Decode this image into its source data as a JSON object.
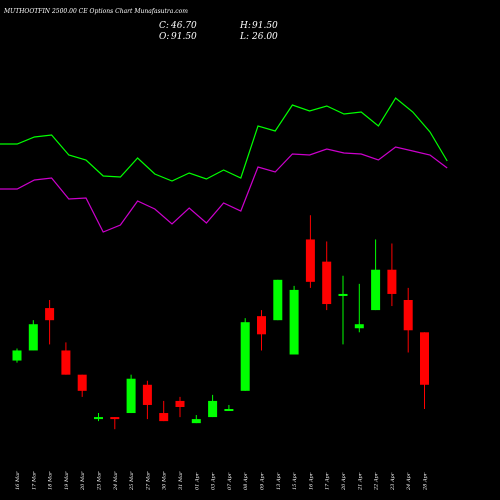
{
  "chart_data": {
    "type": "candlestick",
    "title": "MUTHOOTFIN 2500.00 CE Options Chart Munafasutra.com",
    "ohlc": {
      "c_label": "C:",
      "c_value": "46.70",
      "h_label": "H:",
      "h_value": "91.50",
      "o_label": "O:",
      "o_value": "91.50",
      "l_label": "L:",
      "l_value": "26.00"
    },
    "candles": [
      {
        "date": "16 Mar",
        "open": 47.0,
        "close": 49.5,
        "high": 50.0,
        "low": 46.5,
        "color": "green"
      },
      {
        "date": "17 Mar",
        "open": 49.5,
        "close": 56.0,
        "high": 57.0,
        "low": 49.5,
        "color": "green"
      },
      {
        "date": "18 Mar",
        "open": 60.0,
        "close": 57.0,
        "high": 62.0,
        "low": 51.0,
        "color": "red"
      },
      {
        "date": "19 Mar",
        "open": 49.5,
        "close": 43.5,
        "high": 51.5,
        "low": 43.5,
        "color": "red"
      },
      {
        "date": "20 Mar",
        "open": 43.5,
        "close": 39.5,
        "high": 43.5,
        "low": 38.0,
        "color": "red"
      },
      {
        "date": "23 Mar",
        "open": 33.0,
        "close": 32.5,
        "high": 34.0,
        "low": 32.0,
        "color": "green"
      },
      {
        "date": "24 Mar",
        "open": 33.0,
        "close": 32.5,
        "high": 33.0,
        "low": 30.0,
        "color": "red"
      },
      {
        "date": "25 Mar",
        "open": 34.0,
        "close": 42.5,
        "high": 43.5,
        "low": 34.0,
        "color": "green"
      },
      {
        "date": "27 Mar",
        "open": 41.0,
        "close": 36.0,
        "high": 42.0,
        "low": 32.5,
        "color": "red"
      },
      {
        "date": "30 Mar",
        "open": 34.0,
        "close": 32.0,
        "high": 37.0,
        "low": 32.0,
        "color": "red"
      },
      {
        "date": "31 Mar",
        "open": 37.0,
        "close": 35.5,
        "high": 38.0,
        "low": 33.0,
        "color": "red"
      },
      {
        "date": "01 Apr",
        "open": 31.5,
        "close": 32.5,
        "high": 33.5,
        "low": 31.5,
        "color": "green"
      },
      {
        "date": "03 Apr",
        "open": 33.0,
        "close": 37.0,
        "high": 38.5,
        "low": 33.0,
        "color": "green"
      },
      {
        "date": "07 Apr",
        "open": 34.5,
        "close": 35.0,
        "high": 36.0,
        "low": 34.5,
        "color": "green"
      },
      {
        "date": "08 Apr",
        "open": 39.5,
        "close": 56.5,
        "high": 57.5,
        "low": 39.5,
        "color": "green"
      },
      {
        "date": "09 Apr",
        "open": 58.0,
        "close": 53.5,
        "high": 59.5,
        "low": 49.5,
        "color": "red"
      },
      {
        "date": "13 Apr",
        "open": 57.0,
        "close": 67.0,
        "high": 67.0,
        "low": 57.0,
        "color": "green"
      },
      {
        "date": "15 Apr",
        "open": 48.5,
        "close": 64.5,
        "high": 65.5,
        "low": 48.5,
        "color": "green"
      },
      {
        "date": "16 Apr",
        "open": 77.0,
        "close": 66.5,
        "high": 83.0,
        "low": 65.0,
        "color": "red"
      },
      {
        "date": "17 Apr",
        "open": 71.5,
        "close": 61.0,
        "high": 76.5,
        "low": 59.5,
        "color": "red"
      },
      {
        "date": "20 Apr",
        "open": 63.0,
        "close": 63.5,
        "high": 68.0,
        "low": 51.0,
        "color": "green"
      },
      {
        "date": "21 Apr",
        "open": 55.0,
        "close": 56.0,
        "high": 66.0,
        "low": 54.0,
        "color": "green"
      },
      {
        "date": "22 Apr",
        "open": 59.5,
        "close": 69.5,
        "high": 77.0,
        "low": 59.5,
        "color": "green"
      },
      {
        "date": "23 Apr",
        "open": 69.5,
        "close": 63.5,
        "high": 76.0,
        "low": 60.5,
        "color": "red"
      },
      {
        "date": "24 Apr",
        "open": 62.0,
        "close": 54.5,
        "high": 65.0,
        "low": 49.0,
        "color": "red"
      },
      {
        "date": "28 Apr",
        "open": 54.0,
        "close": 41.0,
        "high": 54.0,
        "low": 35.0,
        "color": "red"
      }
    ],
    "upper_line": [
      144,
      144,
      137,
      135,
      155,
      160,
      176,
      177,
      158,
      174,
      181,
      173,
      179,
      170,
      178,
      126,
      131,
      105,
      111,
      106,
      114,
      112,
      126,
      98,
      112,
      132,
      161
    ],
    "lower_line": [
      189,
      189,
      180,
      178,
      199,
      198,
      232,
      225,
      201,
      209,
      224,
      208,
      223,
      203,
      211,
      167,
      172,
      154,
      155,
      149,
      153,
      154,
      160,
      147,
      151,
      155,
      168
    ],
    "line_colors": {
      "upper": "#00ff00",
      "lower": "#cc00cc"
    },
    "candle_colors": {
      "green": "#00ff00",
      "red": "#ff0000"
    },
    "background": "#000000"
  }
}
